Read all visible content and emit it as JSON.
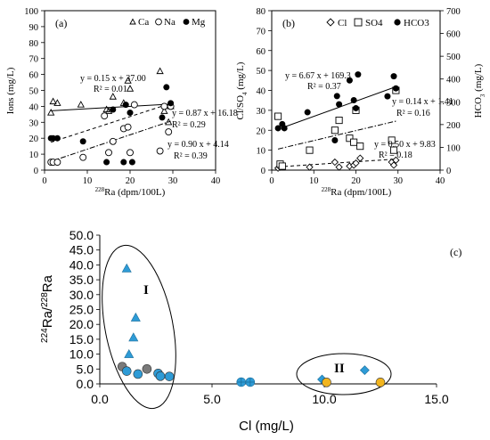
{
  "chart_data": [
    {
      "panel_label": "(a)",
      "type": "scatter",
      "xlabel": "228Ra (dpm/100L)",
      "ylabel": "Ions (mg/L)",
      "xlim": [
        0,
        40
      ],
      "ylim": [
        0,
        100
      ],
      "xticks": [
        "0",
        "10",
        "20",
        "30",
        "40"
      ],
      "yticks": [
        "0",
        "10",
        "20",
        "30",
        "40",
        "50",
        "60",
        "70",
        "80",
        "90",
        "100"
      ],
      "legend": {
        "position": "top-right",
        "entries": [
          "Ca",
          "Na",
          "Mg"
        ]
      },
      "series": [
        {
          "name": "Ca",
          "marker": "triangle-open",
          "points": [
            [
              1.5,
              36
            ],
            [
              2,
              43
            ],
            [
              3,
              42
            ],
            [
              8.5,
              41
            ],
            [
              14.5,
              38
            ],
            [
              15,
              37
            ],
            [
              16,
              46
            ],
            [
              18.5,
              42
            ],
            [
              19.5,
              56
            ],
            [
              20,
              51
            ],
            [
              27,
              62
            ],
            [
              28,
              37
            ],
            [
              29,
              30
            ],
            [
              29.5,
              40
            ]
          ]
        },
        {
          "name": "Na",
          "marker": "circle-open",
          "points": [
            [
              1.5,
              5
            ],
            [
              2,
              5
            ],
            [
              3,
              5
            ],
            [
              9,
              8
            ],
            [
              14,
              34
            ],
            [
              15,
              11
            ],
            [
              16,
              18
            ],
            [
              18.5,
              26
            ],
            [
              19.5,
              27
            ],
            [
              20,
              11
            ],
            [
              21,
              41
            ],
            [
              27,
              12
            ],
            [
              28,
              40
            ],
            [
              29,
              24
            ],
            [
              29.5,
              40
            ]
          ]
        },
        {
          "name": "Mg",
          "marker": "circle-filled",
          "points": [
            [
              1.5,
              20
            ],
            [
              2,
              20
            ],
            [
              3,
              20
            ],
            [
              9,
              18
            ],
            [
              14.5,
              5
            ],
            [
              16,
              38
            ],
            [
              18.5,
              5
            ],
            [
              19,
              41
            ],
            [
              20,
              36
            ],
            [
              20.5,
              5
            ],
            [
              27.5,
              33
            ],
            [
              28.5,
              52
            ],
            [
              29.5,
              42
            ]
          ]
        }
      ],
      "trendlines": [
        {
          "style": "solid",
          "slope": 0.15,
          "intercept": 37.0,
          "equation": "y = 0.15 x + 37.00",
          "r2": "R² = 0.01"
        },
        {
          "style": "dashed",
          "slope": 0.87,
          "intercept": 16.18,
          "equation": "y = 0.87 x + 16.18",
          "r2": "R² = 0.29"
        },
        {
          "style": "dashdot",
          "slope": 0.9,
          "intercept": 4.14,
          "equation": "y = 0.90 x + 4.14",
          "r2": "R² = 0.39"
        }
      ]
    },
    {
      "panel_label": "(b)",
      "type": "scatter",
      "xlabel": "228Ra (dpm/100L)",
      "ylabel": "Cl/SO4 (mg/L)",
      "ylabel_right": "HCO3 (mg/L)",
      "xlim": [
        0,
        40
      ],
      "ylim": [
        0,
        80
      ],
      "ylim_right": [
        0,
        700
      ],
      "xticks": [
        "0",
        "10",
        "20",
        "30",
        "40"
      ],
      "yticks": [
        "0",
        "10",
        "20",
        "30",
        "40",
        "50",
        "60",
        "70",
        "80"
      ],
      "yticks_right": [
        "0",
        "100",
        "200",
        "300",
        "400",
        "500",
        "600",
        "700"
      ],
      "legend": {
        "position": "top-right",
        "entries": [
          "Cl",
          "SO4",
          "HCO3"
        ]
      },
      "series": [
        {
          "name": "Cl",
          "marker": "diamond-open",
          "points": [
            [
              1.5,
              1
            ],
            [
              2,
              1.5
            ],
            [
              2.5,
              2
            ],
            [
              9,
              1.5
            ],
            [
              15,
              4
            ],
            [
              16,
              1.5
            ],
            [
              18.5,
              2
            ],
            [
              19.5,
              2.5
            ],
            [
              20,
              3.5
            ],
            [
              21,
              6
            ],
            [
              28.5,
              4
            ],
            [
              29,
              2.5
            ],
            [
              29.5,
              5
            ]
          ]
        },
        {
          "name": "SO4",
          "marker": "square-open",
          "points": [
            [
              1.5,
              27
            ],
            [
              2,
              3
            ],
            [
              2.5,
              2
            ],
            [
              9,
              10
            ],
            [
              15,
              20
            ],
            [
              16,
              25
            ],
            [
              18.5,
              16
            ],
            [
              19.5,
              14
            ],
            [
              20,
              30
            ],
            [
              21,
              12
            ],
            [
              28.5,
              15
            ],
            [
              29,
              10
            ],
            [
              29.5,
              40
            ]
          ]
        },
        {
          "name": "HCO3",
          "marker": "circle-filled",
          "axis": "right",
          "points": [
            [
              1.5,
              184
            ],
            [
              2.5,
              202
            ],
            [
              3,
              184
            ],
            [
              8.5,
              254
            ],
            [
              15,
              131
            ],
            [
              15.5,
              325
            ],
            [
              16,
              289
            ],
            [
              18.5,
              394
            ],
            [
              19.5,
              307
            ],
            [
              20,
              272
            ],
            [
              20.5,
              420
            ],
            [
              27.5,
              324
            ],
            [
              29,
              412
            ],
            [
              29.5,
              359
            ]
          ]
        }
      ],
      "trendlines": [
        {
          "style": "solid",
          "axis": "right",
          "slope": 6.67,
          "intercept": 169.3,
          "equation": "y = 6.67 x + 169.3",
          "r2": "R² = 0.37"
        },
        {
          "style": "dashed",
          "slope": 0.14,
          "intercept": 1.41,
          "equation": "y = 0.14 x + 1.41",
          "r2": "R² = 0.16"
        },
        {
          "style": "dashdot",
          "slope": 0.5,
          "intercept": 9.83,
          "equation": "y = 0.50 x + 9.83",
          "r2": "R² = 0.18"
        }
      ]
    },
    {
      "panel_label": "(c)",
      "type": "scatter",
      "xlabel": "Cl (mg/L)",
      "ylabel": "224Ra/228Ra",
      "xlim": [
        0,
        15
      ],
      "ylim": [
        0,
        50
      ],
      "xticks": [
        "0.0",
        "5.0",
        "10.0",
        "15.0"
      ],
      "yticks": [
        "0.0",
        "5.0",
        "10.0",
        "15.0",
        "20.0",
        "25.0",
        "30.0",
        "35.0",
        "40.0",
        "45.0",
        "50.0"
      ],
      "groups": [
        "I",
        "II"
      ],
      "series": [
        {
          "marker": "triangle-filled",
          "color": "#2e9bd6",
          "points": [
            [
              1.2,
              38.8
            ],
            [
              1.6,
              22.3
            ],
            [
              1.5,
              15.6
            ],
            [
              1.3,
              10.0
            ]
          ]
        },
        {
          "marker": "circle-filled",
          "color": "#7a7a7a",
          "points": [
            [
              1.0,
              5.8
            ],
            [
              2.1,
              5.0
            ]
          ]
        },
        {
          "marker": "circle-filled",
          "color": "#2e9bd6",
          "points": [
            [
              1.2,
              4.3
            ],
            [
              1.7,
              3.3
            ],
            [
              2.6,
              3.5
            ],
            [
              2.7,
              2.6
            ],
            [
              3.1,
              2.5
            ]
          ]
        },
        {
          "marker": "circle-plus",
          "color": "#2e9bd6",
          "points": [
            [
              6.3,
              0.6
            ],
            [
              6.7,
              0.6
            ]
          ]
        },
        {
          "marker": "diamond-filled",
          "color": "#2e9bd6",
          "points": [
            [
              9.9,
              1.5
            ],
            [
              11.8,
              4.6
            ]
          ]
        },
        {
          "marker": "circle-filled",
          "color": "#f2b51e",
          "points": [
            [
              10.1,
              0.5
            ],
            [
              12.5,
              0.5
            ]
          ]
        }
      ]
    }
  ],
  "colors": {
    "blue": "#2e9bd6",
    "gray": "#7a7a7a",
    "yellow": "#f2b51e",
    "black": "#000000"
  }
}
